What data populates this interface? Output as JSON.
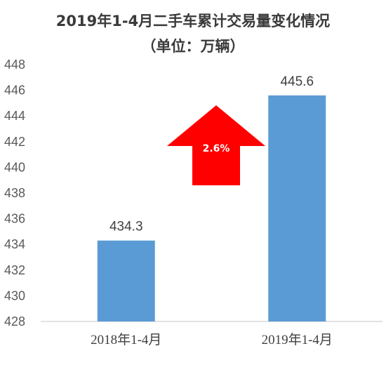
{
  "chart_data": {
    "type": "bar",
    "title_line1": "2019年1-4月二手车累计交易量变化情况",
    "title_line2": "（单位：万辆）",
    "categories": [
      "2018年1-4月",
      "2019年1-4月"
    ],
    "values": [
      434.3,
      445.6
    ],
    "data_labels": [
      "434.3",
      "445.6"
    ],
    "ylim": [
      428,
      448
    ],
    "yticks": [
      428,
      430,
      432,
      434,
      436,
      438,
      440,
      442,
      444,
      446,
      448
    ],
    "grid": false,
    "legend": "none",
    "annotation": {
      "label": "2.6%",
      "shape": "up-arrow",
      "color": "#ff0000"
    },
    "colors": {
      "bar": "#5b9bd5",
      "axis": "#d9d9d9"
    }
  }
}
